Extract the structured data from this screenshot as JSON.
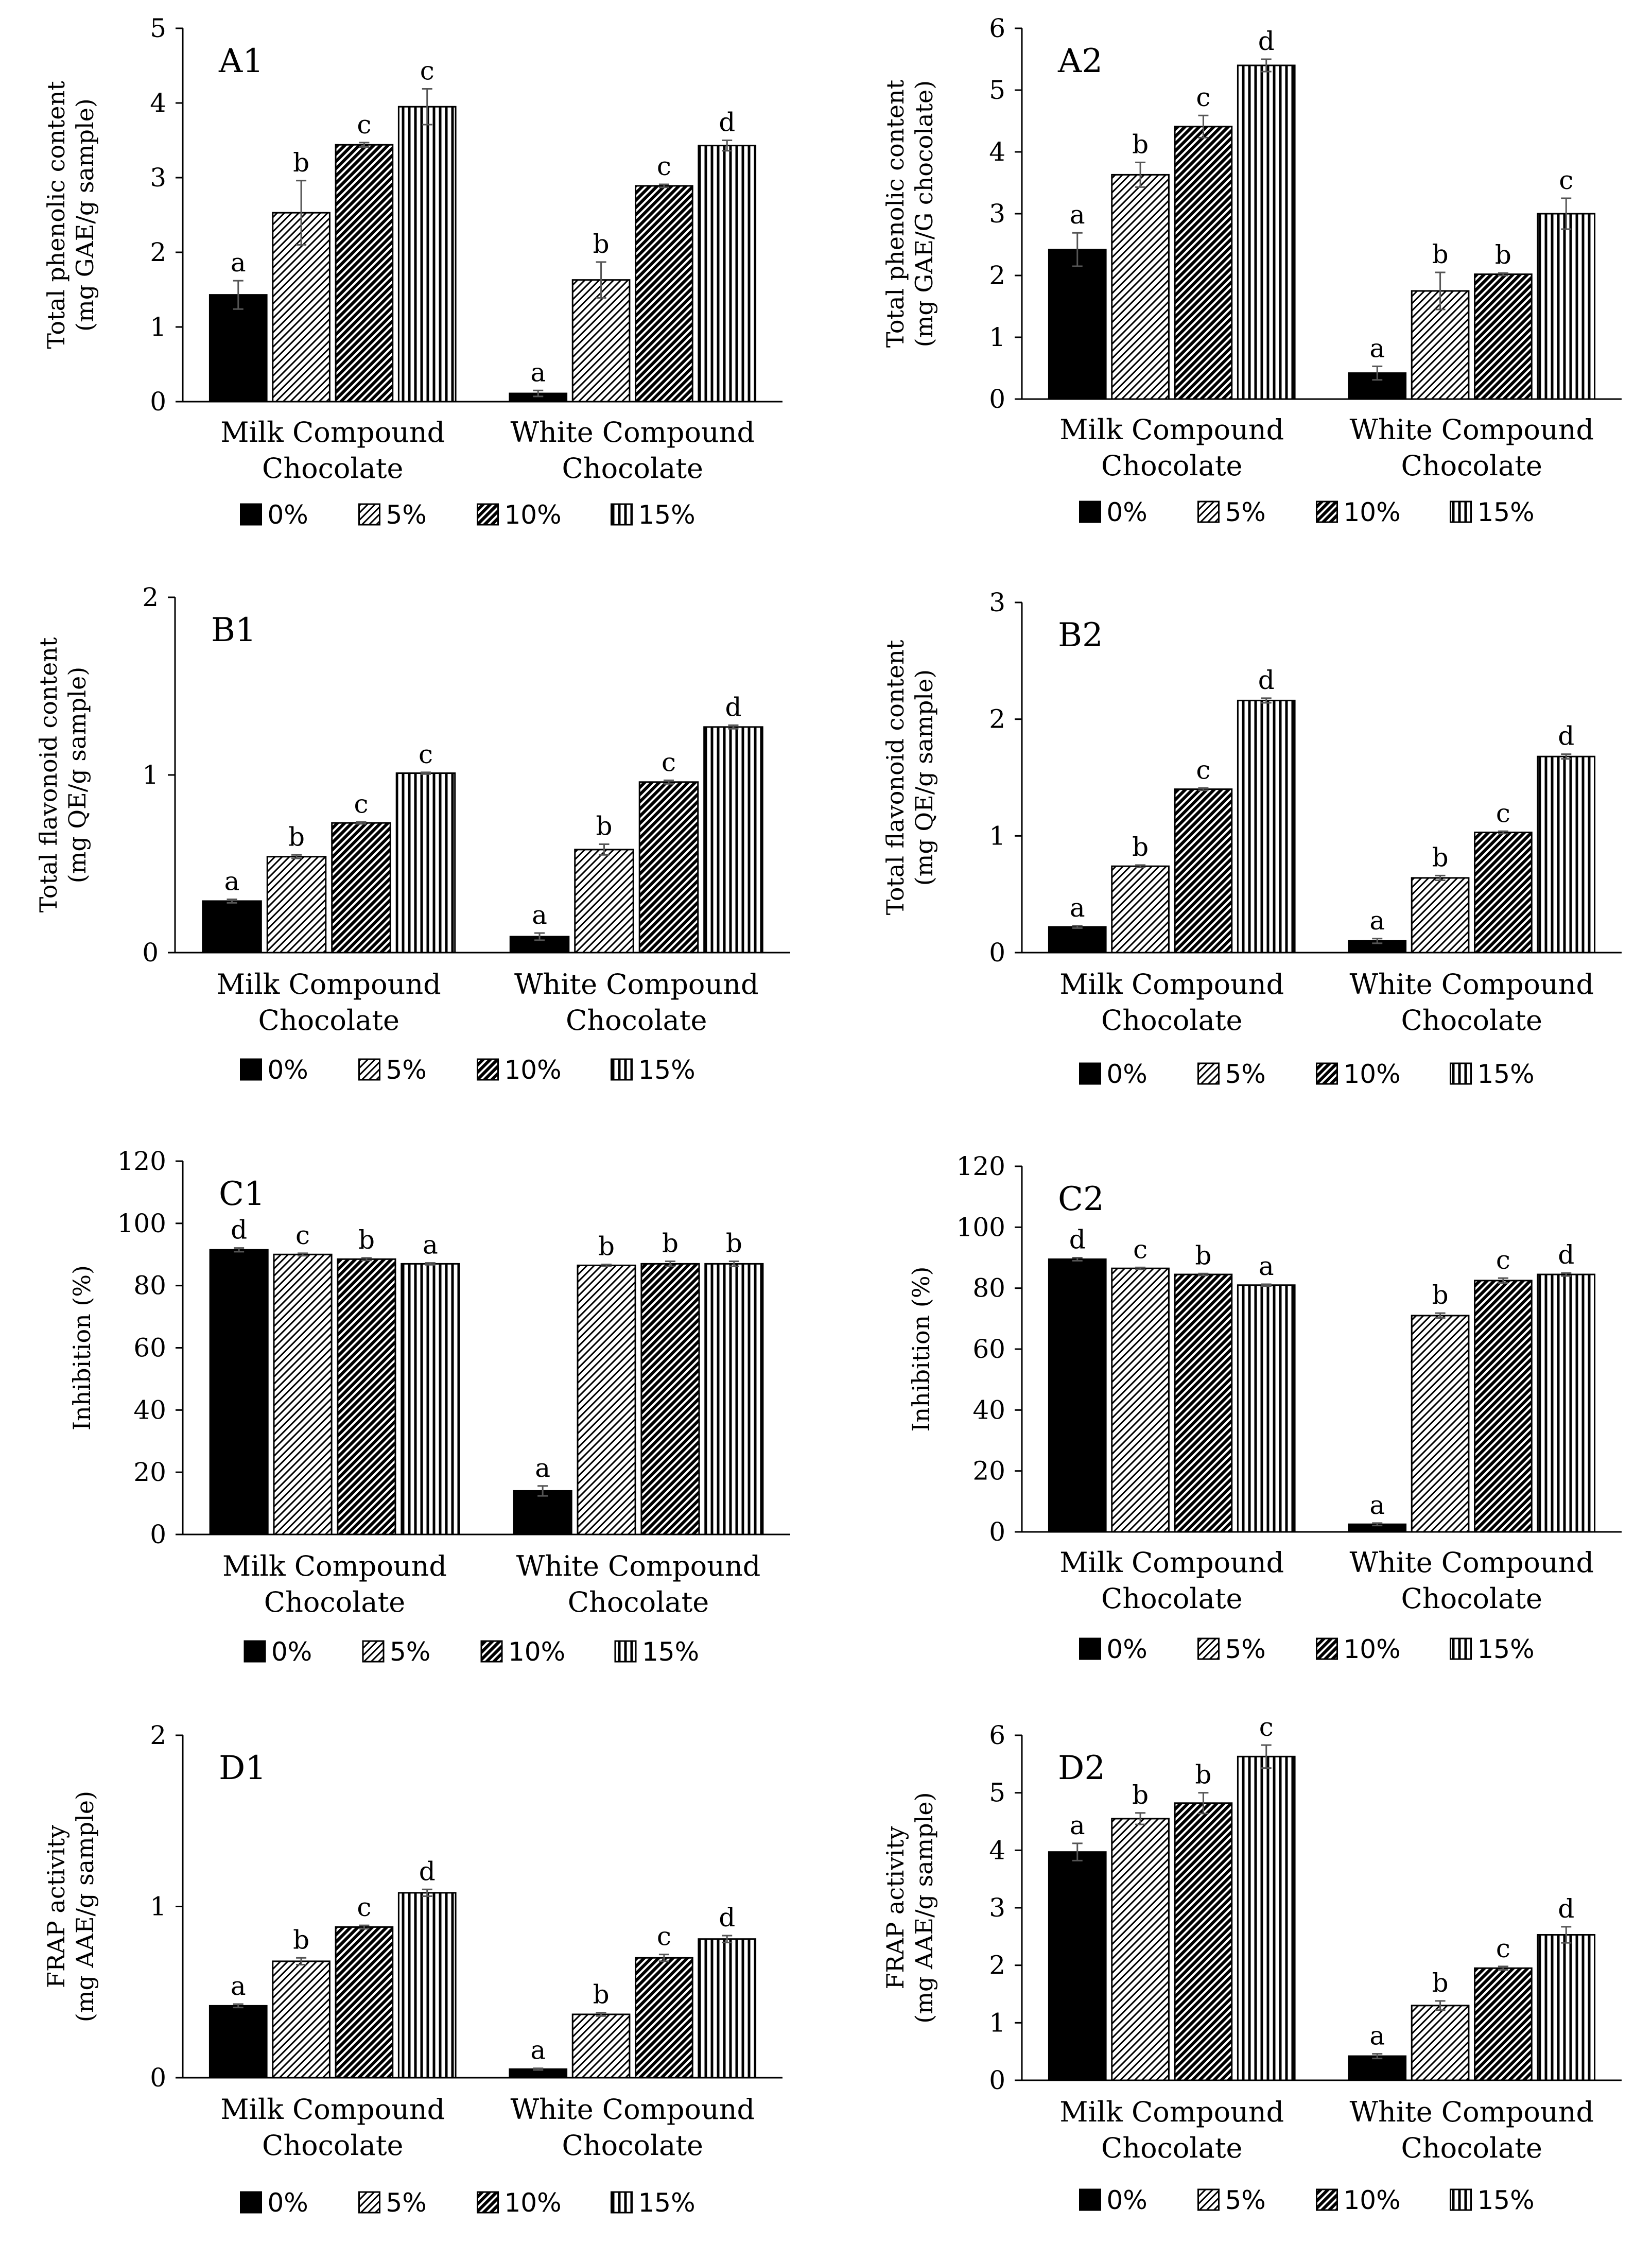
{
  "series_names": [
    "0%",
    "5%",
    "10%",
    "15%"
  ],
  "categories": [
    "Milk Compound\nChocolate",
    "White Compound\nChocolate"
  ],
  "chart_data": [
    {
      "id": "A1",
      "type": "bar",
      "title": "A1",
      "ylabel": [
        "Total phenolic content",
        "(mg GAE/g sample)"
      ],
      "ylim": [
        0,
        5
      ],
      "yticks": [
        0,
        1,
        2,
        3,
        4,
        5
      ],
      "categories": [
        "Milk Compound\nChocolate",
        "White Compound\nChocolate"
      ],
      "series": [
        {
          "name": "0%",
          "values": [
            1.43,
            0.11
          ],
          "errors": [
            0.19,
            0.04
          ],
          "letters": [
            "a",
            "a"
          ]
        },
        {
          "name": "5%",
          "values": [
            2.53,
            1.63
          ],
          "errors": [
            0.43,
            0.24
          ],
          "letters": [
            "b",
            "b"
          ]
        },
        {
          "name": "10%",
          "values": [
            3.44,
            2.89
          ],
          "errors": [
            0.03,
            0.02
          ],
          "letters": [
            "c",
            "c"
          ]
        },
        {
          "name": "15%",
          "values": [
            3.95,
            3.43
          ],
          "errors": [
            0.24,
            0.07
          ],
          "letters": [
            "c",
            "d"
          ]
        }
      ]
    },
    {
      "id": "A2",
      "type": "bar",
      "title": "A2",
      "ylabel": [
        "Total phenolic content",
        "(mg GAE/G chocolate)"
      ],
      "ylim": [
        0,
        6
      ],
      "yticks": [
        0,
        1,
        2,
        3,
        4,
        5,
        6
      ],
      "categories": [
        "Milk Compound\nChocolate",
        "White Compound\nChocolate"
      ],
      "series": [
        {
          "name": "0%",
          "values": [
            2.42,
            0.42
          ],
          "errors": [
            0.27,
            0.11
          ],
          "letters": [
            "a",
            "a"
          ]
        },
        {
          "name": "5%",
          "values": [
            3.63,
            1.75
          ],
          "errors": [
            0.2,
            0.3
          ],
          "letters": [
            "b",
            "b"
          ]
        },
        {
          "name": "10%",
          "values": [
            4.41,
            2.02
          ],
          "errors": [
            0.18,
            0.02
          ],
          "letters": [
            "c",
            "b"
          ]
        },
        {
          "name": "15%",
          "values": [
            5.4,
            3.0
          ],
          "errors": [
            0.1,
            0.25
          ],
          "letters": [
            "d",
            "c"
          ]
        }
      ]
    },
    {
      "id": "B1",
      "type": "bar",
      "title": "B1",
      "ylabel": [
        "Total flavonoid content",
        "(mg QE/g sample)"
      ],
      "ylim": [
        0,
        2
      ],
      "yticks": [
        0,
        1,
        2
      ],
      "categories": [
        "Milk Compound\nChocolate",
        "White Compound\nChocolate"
      ],
      "series": [
        {
          "name": "0%",
          "values": [
            0.29,
            0.09
          ],
          "errors": [
            0.01,
            0.02
          ],
          "letters": [
            "a",
            "a"
          ]
        },
        {
          "name": "5%",
          "values": [
            0.54,
            0.58
          ],
          "errors": [
            0.01,
            0.03
          ],
          "letters": [
            "b",
            "b"
          ]
        },
        {
          "name": "10%",
          "values": [
            0.73,
            0.96
          ],
          "errors": [
            0.005,
            0.01
          ],
          "letters": [
            "c",
            "c"
          ]
        },
        {
          "name": "15%",
          "values": [
            1.01,
            1.27
          ],
          "errors": [
            0.005,
            0.01
          ],
          "letters": [
            "c",
            "d"
          ]
        }
      ]
    },
    {
      "id": "B2",
      "type": "bar",
      "title": "B2",
      "ylabel": [
        "Total flavonoid content",
        "(mg QE/g sample)"
      ],
      "ylim": [
        0,
        3
      ],
      "yticks": [
        0,
        1,
        2,
        3
      ],
      "categories": [
        "Milk Compound\nChocolate",
        "White Compound\nChocolate"
      ],
      "series": [
        {
          "name": "0%",
          "values": [
            0.22,
            0.1
          ],
          "errors": [
            0.01,
            0.02
          ],
          "letters": [
            "a",
            "a"
          ]
        },
        {
          "name": "5%",
          "values": [
            0.74,
            0.64
          ],
          "errors": [
            0.01,
            0.02
          ],
          "letters": [
            "b",
            "b"
          ]
        },
        {
          "name": "10%",
          "values": [
            1.4,
            1.03
          ],
          "errors": [
            0.01,
            0.01
          ],
          "letters": [
            "c",
            "c"
          ]
        },
        {
          "name": "15%",
          "values": [
            2.16,
            1.68
          ],
          "errors": [
            0.02,
            0.02
          ],
          "letters": [
            "d",
            "d"
          ]
        }
      ]
    },
    {
      "id": "C1",
      "type": "bar",
      "title": "C1",
      "ylabel": [
        "Inhibition (%)"
      ],
      "ylim": [
        0,
        120
      ],
      "yticks": [
        0,
        20,
        40,
        60,
        80,
        100,
        120
      ],
      "categories": [
        "Milk Compound\nChocolate",
        "White Compound\nChocolate"
      ],
      "series": [
        {
          "name": "0%",
          "values": [
            91.5,
            14.0
          ],
          "errors": [
            0.6,
            1.6
          ],
          "letters": [
            "d",
            "a"
          ]
        },
        {
          "name": "5%",
          "values": [
            90.0,
            86.5
          ],
          "errors": [
            0.4,
            0.3
          ],
          "letters": [
            "c",
            "b"
          ]
        },
        {
          "name": "10%",
          "values": [
            88.5,
            87.0
          ],
          "errors": [
            0.4,
            0.8
          ],
          "letters": [
            "b",
            "b"
          ]
        },
        {
          "name": "15%",
          "values": [
            87.0,
            87.0
          ],
          "errors": [
            0.3,
            0.8
          ],
          "letters": [
            "a",
            "b"
          ]
        }
      ]
    },
    {
      "id": "C2",
      "type": "bar",
      "title": "C2",
      "ylabel": [
        "Inhibition (%)"
      ],
      "ylim": [
        0,
        120
      ],
      "yticks": [
        0,
        20,
        40,
        60,
        80,
        100,
        120
      ],
      "categories": [
        "Milk Compound\nChocolate",
        "White Compound\nChocolate"
      ],
      "series": [
        {
          "name": "0%",
          "values": [
            89.5,
            2.5
          ],
          "errors": [
            0.5,
            0.4
          ],
          "letters": [
            "d",
            "a"
          ]
        },
        {
          "name": "5%",
          "values": [
            86.5,
            71.0
          ],
          "errors": [
            0.3,
            0.8
          ],
          "letters": [
            "c",
            "b"
          ]
        },
        {
          "name": "10%",
          "values": [
            84.5,
            82.5
          ],
          "errors": [
            0.3,
            0.8
          ],
          "letters": [
            "b",
            "c"
          ]
        },
        {
          "name": "15%",
          "values": [
            81.0,
            84.5
          ],
          "errors": [
            0.3,
            0.5
          ],
          "letters": [
            "a",
            "d"
          ]
        }
      ]
    },
    {
      "id": "D1",
      "type": "bar",
      "title": "D1",
      "ylabel": [
        "FRAP activity",
        "(mg AAE/g sample)"
      ],
      "ylim": [
        0,
        2
      ],
      "yticks": [
        0,
        1,
        2
      ],
      "categories": [
        "Milk Compound\nChocolate",
        "White Compound\nChocolate"
      ],
      "series": [
        {
          "name": "0%",
          "values": [
            0.42,
            0.05
          ],
          "errors": [
            0.01,
            0.005
          ],
          "letters": [
            "a",
            "a"
          ]
        },
        {
          "name": "5%",
          "values": [
            0.68,
            0.37
          ],
          "errors": [
            0.02,
            0.01
          ],
          "letters": [
            "b",
            "b"
          ]
        },
        {
          "name": "10%",
          "values": [
            0.88,
            0.7
          ],
          "errors": [
            0.01,
            0.02
          ],
          "letters": [
            "c",
            "c"
          ]
        },
        {
          "name": "15%",
          "values": [
            1.08,
            0.81
          ],
          "errors": [
            0.02,
            0.02
          ],
          "letters": [
            "d",
            "d"
          ]
        }
      ]
    },
    {
      "id": "D2",
      "type": "bar",
      "title": "D2",
      "ylabel": [
        "FRAP activity",
        "(mg AAE/g sample)"
      ],
      "ylim": [
        0,
        6
      ],
      "yticks": [
        0,
        1,
        2,
        3,
        4,
        5,
        6
      ],
      "categories": [
        "Milk Compound\nChocolate",
        "White Compound\nChocolate"
      ],
      "series": [
        {
          "name": "0%",
          "values": [
            3.97,
            0.42
          ],
          "errors": [
            0.15,
            0.04
          ],
          "letters": [
            "a",
            "a"
          ]
        },
        {
          "name": "5%",
          "values": [
            4.55,
            1.3
          ],
          "errors": [
            0.1,
            0.08
          ],
          "letters": [
            "b",
            "b"
          ]
        },
        {
          "name": "10%",
          "values": [
            4.82,
            1.95
          ],
          "errors": [
            0.18,
            0.03
          ],
          "letters": [
            "b",
            "c"
          ]
        },
        {
          "name": "15%",
          "values": [
            5.63,
            2.53
          ],
          "errors": [
            0.2,
            0.14
          ],
          "letters": [
            "c",
            "d"
          ]
        }
      ]
    }
  ]
}
